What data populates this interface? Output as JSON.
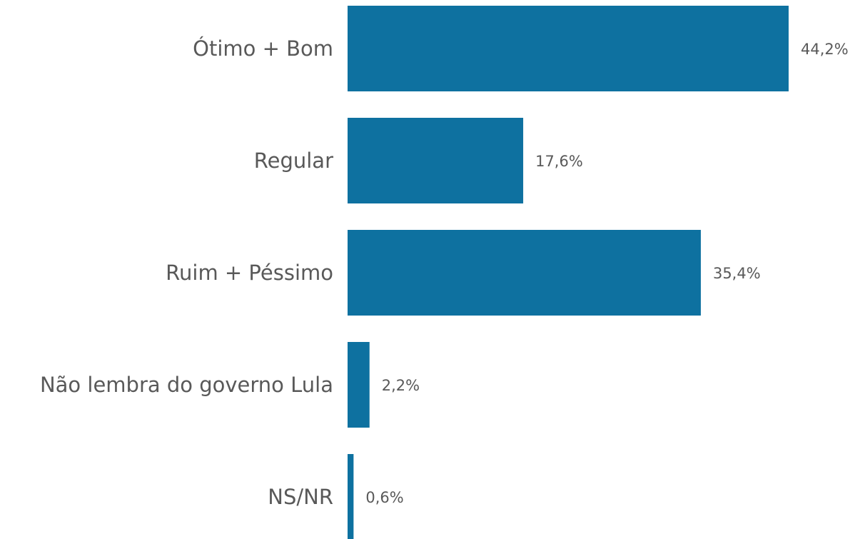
{
  "chart_data": {
    "type": "bar",
    "orientation": "horizontal",
    "categories": [
      "Ótimo + Bom",
      "Regular",
      "Ruim + Péssimo",
      "Não lembra do governo Lula",
      "NS/NR"
    ],
    "values": [
      44.2,
      17.6,
      35.4,
      2.2,
      0.6
    ],
    "value_labels": [
      "44,2%",
      "17,6%",
      "35,4%",
      "2,2%",
      "0,6%"
    ],
    "color": "#0e71a0"
  }
}
